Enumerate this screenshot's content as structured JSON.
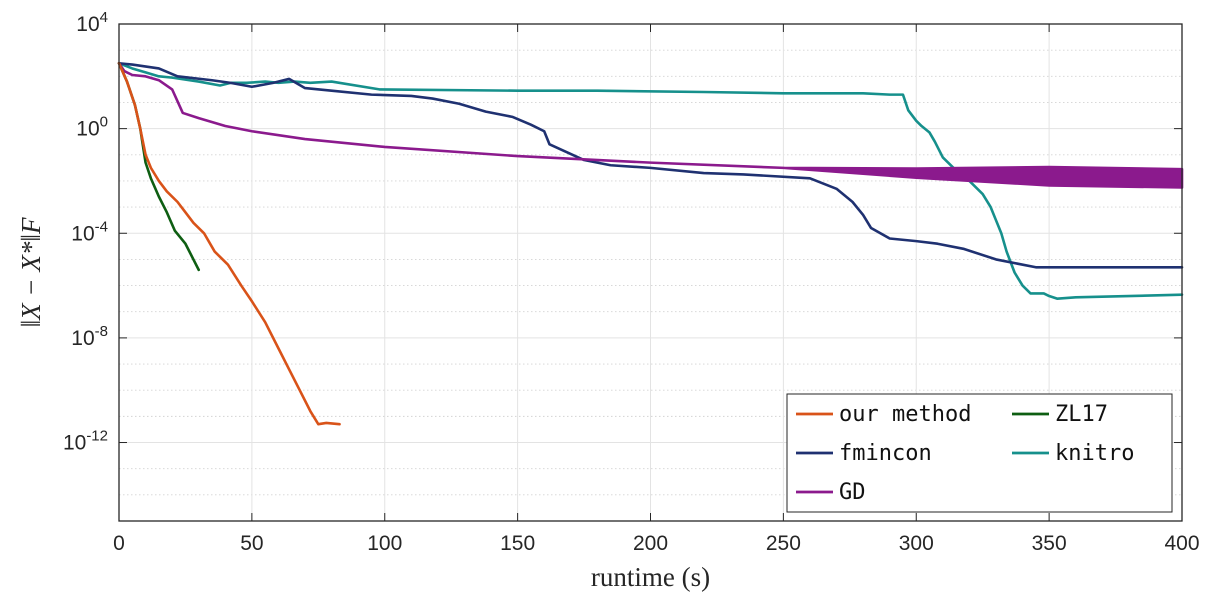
{
  "chart_data": {
    "type": "line",
    "xlabel": "runtime (s)",
    "ylabel": "‖X − X*‖F",
    "xlim": [
      0,
      400
    ],
    "ylim_log10": [
      -15,
      4
    ],
    "y_scale": "log",
    "grid": true,
    "legend_position": "bottom-right",
    "x_ticks": [
      "0",
      "50",
      "100",
      "150",
      "200",
      "250",
      "300",
      "350",
      "400"
    ],
    "y_ticks": [
      {
        "base": "10",
        "exp": "4"
      },
      {
        "base": "10",
        "exp": "0"
      },
      {
        "base": "10",
        "exp": "-4"
      },
      {
        "base": "10",
        "exp": "-8"
      },
      {
        "base": "10",
        "exp": "-12"
      }
    ],
    "series": [
      {
        "name": "our method",
        "color": "#d95319",
        "x": [
          0,
          3,
          6,
          8,
          10,
          12,
          15,
          18,
          22,
          25,
          28,
          32,
          36,
          41,
          46,
          50,
          55,
          60,
          64,
          68,
          72,
          75,
          78,
          83
        ],
        "log10_y": [
          2.5,
          1.8,
          0.9,
          0.0,
          -1.0,
          -1.5,
          -2.0,
          -2.4,
          -2.8,
          -3.2,
          -3.6,
          -4.0,
          -4.7,
          -5.2,
          -6.0,
          -6.6,
          -7.4,
          -8.4,
          -9.2,
          -10.0,
          -10.8,
          -11.3,
          -11.25,
          -11.3
        ]
      },
      {
        "name": "ZL17",
        "color": "#0e5e12",
        "x": [
          0,
          3,
          6,
          8,
          10,
          12,
          15,
          18,
          21,
          25,
          28,
          30
        ],
        "log10_y": [
          2.5,
          1.8,
          0.9,
          0.0,
          -1.3,
          -1.9,
          -2.6,
          -3.2,
          -3.9,
          -4.4,
          -5.0,
          -5.4
        ]
      },
      {
        "name": "fmincon",
        "color": "#1f3171",
        "x": [
          0,
          5,
          15,
          22,
          35,
          42,
          50,
          58,
          64,
          70,
          80,
          95,
          110,
          118,
          128,
          138,
          148,
          155,
          160,
          162,
          175,
          185,
          200,
          220,
          235,
          260,
          270,
          276,
          280,
          283,
          290,
          300,
          308,
          318,
          330,
          345,
          350,
          400
        ],
        "log10_y": [
          2.5,
          2.45,
          2.3,
          2.0,
          1.85,
          1.75,
          1.6,
          1.75,
          1.9,
          1.55,
          1.45,
          1.3,
          1.25,
          1.15,
          0.95,
          0.65,
          0.45,
          0.15,
          -0.1,
          -0.6,
          -1.2,
          -1.4,
          -1.5,
          -1.7,
          -1.75,
          -1.9,
          -2.3,
          -2.8,
          -3.3,
          -3.8,
          -4.2,
          -4.3,
          -4.4,
          -4.6,
          -5.0,
          -5.3,
          -5.3,
          -5.3
        ]
      },
      {
        "name": "knitro",
        "color": "#16908c",
        "x": [
          0,
          5,
          10,
          15,
          20,
          30,
          38,
          42,
          48,
          55,
          60,
          66,
          72,
          80,
          98,
          150,
          180,
          220,
          250,
          280,
          290,
          295,
          297,
          300,
          302,
          305,
          307,
          310,
          315,
          320,
          325,
          328,
          330,
          332,
          334,
          337,
          340,
          343,
          348,
          350,
          353,
          360,
          400
        ],
        "log10_y": [
          2.5,
          2.3,
          2.15,
          2.0,
          1.95,
          1.8,
          1.65,
          1.75,
          1.75,
          1.8,
          1.75,
          1.8,
          1.75,
          1.8,
          1.5,
          1.45,
          1.45,
          1.4,
          1.35,
          1.35,
          1.3,
          1.3,
          0.7,
          0.3,
          0.1,
          -0.15,
          -0.5,
          -1.1,
          -1.6,
          -2.0,
          -2.5,
          -3.0,
          -3.5,
          -4.0,
          -4.7,
          -5.5,
          -6.0,
          -6.3,
          -6.3,
          -6.4,
          -6.5,
          -6.45,
          -6.35
        ]
      },
      {
        "name": "GD",
        "color": "#8b1a8d",
        "x": [
          0,
          2,
          5,
          10,
          15,
          20,
          24,
          30,
          40,
          50,
          70,
          100,
          150,
          200,
          250,
          300,
          350,
          400
        ],
        "log10_y": [
          2.5,
          2.2,
          2.05,
          2.0,
          1.85,
          1.5,
          0.6,
          0.4,
          0.1,
          -0.1,
          -0.4,
          -0.7,
          -1.05,
          -1.3,
          -1.5,
          -1.7,
          -1.82,
          -1.9
        ],
        "band_log10_width": 0.35
      }
    ]
  }
}
